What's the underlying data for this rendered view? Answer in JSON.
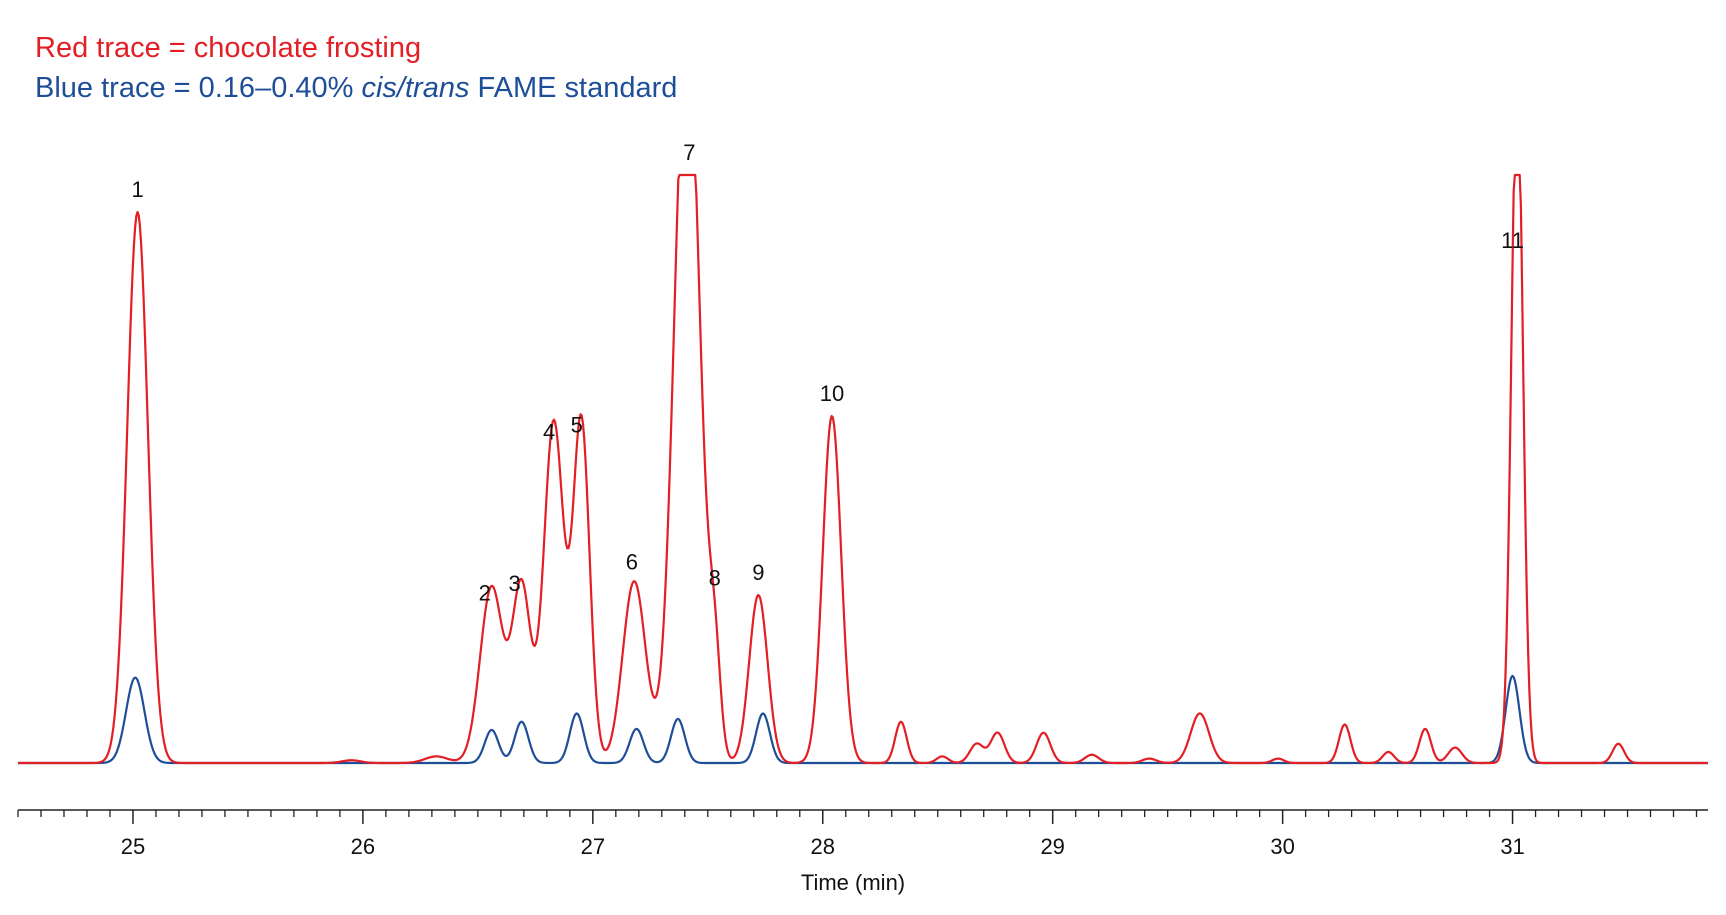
{
  "legend": {
    "red_label": "Red trace = chocolate frosting",
    "blue_label_prefix": "Blue trace = 0.16–0.40% ",
    "blue_label_italic": "cis/trans",
    "blue_label_suffix": " FAME standard"
  },
  "chart_data": {
    "type": "line",
    "title": "",
    "xlabel": "Time (min)",
    "ylabel": "",
    "xlim": [
      24.5,
      31.85
    ],
    "ylim": [
      0,
      1.1
    ],
    "x_ticks": [
      25,
      26,
      27,
      28,
      29,
      30,
      31
    ],
    "grid": false,
    "legend_position": "top-left",
    "colors": {
      "red": "#e31e24",
      "blue": "#1f4e99"
    },
    "series": [
      {
        "name": "chocolate frosting",
        "color": "#e31e24",
        "peaks": [
          {
            "x": 25.02,
            "y": 1.0,
            "w": 0.045
          },
          {
            "x": 25.95,
            "y": 0.005,
            "w": 0.04
          },
          {
            "x": 26.32,
            "y": 0.012,
            "w": 0.05
          },
          {
            "x": 26.56,
            "y": 0.32,
            "w": 0.05
          },
          {
            "x": 26.69,
            "y": 0.32,
            "w": 0.04
          },
          {
            "x": 26.83,
            "y": 0.62,
            "w": 0.043
          },
          {
            "x": 26.95,
            "y": 0.62,
            "w": 0.036
          },
          {
            "x": 27.18,
            "y": 0.33,
            "w": 0.05
          },
          {
            "x": 27.41,
            "y": 1.35,
            "w": 0.055
          },
          {
            "x": 27.53,
            "y": 0.17,
            "w": 0.025
          },
          {
            "x": 27.72,
            "y": 0.305,
            "w": 0.04
          },
          {
            "x": 28.04,
            "y": 0.63,
            "w": 0.04
          },
          {
            "x": 28.34,
            "y": 0.075,
            "w": 0.025
          },
          {
            "x": 28.52,
            "y": 0.012,
            "w": 0.025
          },
          {
            "x": 28.67,
            "y": 0.035,
            "w": 0.03
          },
          {
            "x": 28.76,
            "y": 0.055,
            "w": 0.03
          },
          {
            "x": 28.96,
            "y": 0.055,
            "w": 0.03
          },
          {
            "x": 29.17,
            "y": 0.015,
            "w": 0.03
          },
          {
            "x": 29.42,
            "y": 0.008,
            "w": 0.03
          },
          {
            "x": 29.64,
            "y": 0.09,
            "w": 0.04
          },
          {
            "x": 29.98,
            "y": 0.008,
            "w": 0.025
          },
          {
            "x": 30.27,
            "y": 0.07,
            "w": 0.025
          },
          {
            "x": 30.46,
            "y": 0.02,
            "w": 0.025
          },
          {
            "x": 30.62,
            "y": 0.062,
            "w": 0.025
          },
          {
            "x": 30.75,
            "y": 0.028,
            "w": 0.03
          },
          {
            "x": 31.02,
            "y": 1.25,
            "w": 0.025
          },
          {
            "x": 31.46,
            "y": 0.035,
            "w": 0.025
          }
        ]
      },
      {
        "name": "0.16–0.40% cis/trans FAME standard",
        "color": "#1f4e99",
        "peaks": [
          {
            "x": 25.01,
            "y": 0.155,
            "w": 0.04
          },
          {
            "x": 26.56,
            "y": 0.06,
            "w": 0.03
          },
          {
            "x": 26.69,
            "y": 0.075,
            "w": 0.03
          },
          {
            "x": 26.93,
            "y": 0.09,
            "w": 0.03
          },
          {
            "x": 27.19,
            "y": 0.062,
            "w": 0.03
          },
          {
            "x": 27.37,
            "y": 0.08,
            "w": 0.03
          },
          {
            "x": 27.74,
            "y": 0.09,
            "w": 0.03
          },
          {
            "x": 31.0,
            "y": 0.158,
            "w": 0.03
          }
        ]
      }
    ],
    "peak_labels": [
      {
        "text": "1",
        "x": 25.02
      },
      {
        "text": "2",
        "x": 26.53
      },
      {
        "text": "3",
        "x": 26.66
      },
      {
        "text": "4",
        "x": 26.81
      },
      {
        "text": "5",
        "x": 26.93
      },
      {
        "text": "6",
        "x": 27.17
      },
      {
        "text": "7",
        "x": 27.42
      },
      {
        "text": "8",
        "x": 27.53
      },
      {
        "text": "9",
        "x": 27.72
      },
      {
        "text": "10",
        "x": 28.04
      },
      {
        "text": "11",
        "x": 31.0
      }
    ]
  }
}
